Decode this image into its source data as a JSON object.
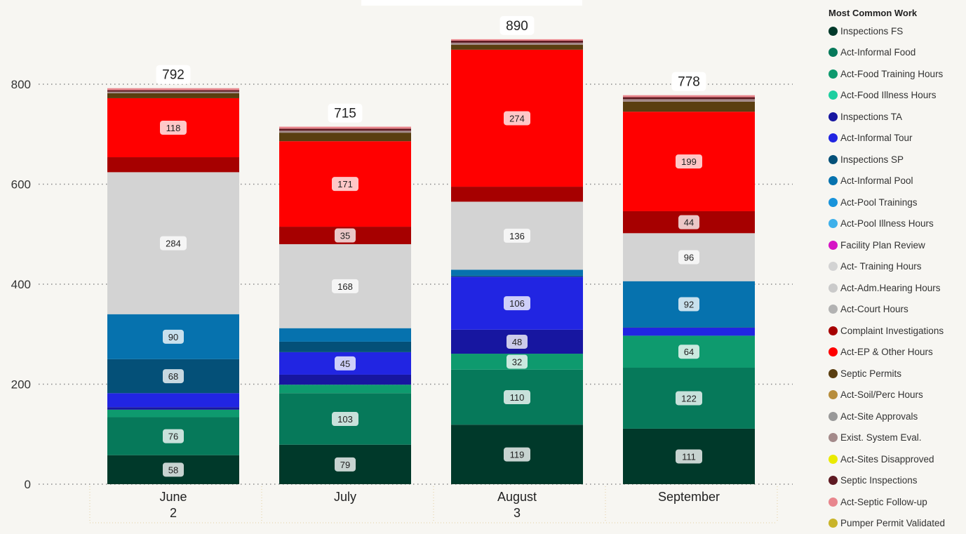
{
  "legend": {
    "title": "Most Common Work",
    "items": [
      {
        "name": "Inspections FS",
        "color": "#00392a"
      },
      {
        "name": "Act-Informal Food",
        "color": "#06795a"
      },
      {
        "name": "Act-Food Training Hours",
        "color": "#0e9a6e"
      },
      {
        "name": "Act-Food Illness Hours",
        "color": "#1ecfa0"
      },
      {
        "name": "Inspections TA",
        "color": "#1716a0"
      },
      {
        "name": "Act-Informal Tour",
        "color": "#2125e2"
      },
      {
        "name": "Inspections SP",
        "color": "#045078"
      },
      {
        "name": "Act-Informal Pool",
        "color": "#0672ae"
      },
      {
        "name": "Act-Pool Trainings",
        "color": "#1893da"
      },
      {
        "name": "Act-Pool Illness Hours",
        "color": "#3eb0ea"
      },
      {
        "name": "Facility Plan Review",
        "color": "#d614c5"
      },
      {
        "name": "Act- Training Hours",
        "color": "#d3d3d3"
      },
      {
        "name": "Act-Adm.Hearing Hours",
        "color": "#cacaca"
      },
      {
        "name": "Act-Court Hours",
        "color": "#b2b2b2"
      },
      {
        "name": "Complaint Investigations",
        "color": "#a60000"
      },
      {
        "name": "Act-EP & Other Hours",
        "color": "#ff0000"
      },
      {
        "name": "Septic Permits",
        "color": "#5a3e10"
      },
      {
        "name": "Act-Soil/Perc Hours",
        "color": "#b78d3c"
      },
      {
        "name": "Act-Site Approvals",
        "color": "#999999"
      },
      {
        "name": "Exist. System Eval.",
        "color": "#a48a8a"
      },
      {
        "name": "Act-Sites Disapproved",
        "color": "#eaea00"
      },
      {
        "name": "Septic Inspections",
        "color": "#5e1a22"
      },
      {
        "name": "Act-Septic Follow-up",
        "color": "#e8868d"
      },
      {
        "name": "Pumper Permit Validated",
        "color": "#c9b42a"
      }
    ]
  },
  "chart_data": {
    "type": "bar",
    "stacked": true,
    "title": "",
    "xlabel": "",
    "ylabel": "",
    "ylim": [
      0,
      890
    ],
    "y_ticks": [
      0,
      200,
      400,
      600,
      800
    ],
    "grid": true,
    "legend_position": "right",
    "categories": [
      "June",
      "July",
      "August",
      "September"
    ],
    "category_sublabels": [
      "2",
      "",
      "3",
      ""
    ],
    "totals": [
      792,
      715,
      890,
      778
    ],
    "series": [
      {
        "name": "Inspections FS",
        "values": [
          58,
          79,
          119,
          111
        ],
        "labels": [
          true,
          true,
          true,
          true
        ]
      },
      {
        "name": "Act-Informal Food",
        "values": [
          76,
          103,
          110,
          122
        ],
        "labels": [
          true,
          true,
          true,
          true
        ]
      },
      {
        "name": "Act-Food Training Hours",
        "values": [
          15,
          17,
          32,
          64
        ],
        "labels": [
          false,
          false,
          true,
          true
        ]
      },
      {
        "name": "Act-Food Illness Hours",
        "values": [
          0,
          0,
          0,
          0
        ],
        "labels": [
          false,
          false,
          false,
          false
        ]
      },
      {
        "name": "Inspections TA",
        "values": [
          5,
          20,
          48,
          0
        ],
        "labels": [
          false,
          false,
          true,
          false
        ]
      },
      {
        "name": "Act-Informal Tour",
        "values": [
          28,
          45,
          106,
          16
        ],
        "labels": [
          false,
          true,
          true,
          false
        ]
      },
      {
        "name": "Inspections SP",
        "values": [
          68,
          21,
          2,
          1
        ],
        "labels": [
          true,
          false,
          false,
          false
        ]
      },
      {
        "name": "Act-Informal Pool",
        "values": [
          90,
          27,
          12,
          92
        ],
        "labels": [
          true,
          false,
          false,
          true
        ]
      },
      {
        "name": "Act-Pool Trainings",
        "values": [
          0,
          0,
          0,
          0
        ],
        "labels": [
          false,
          false,
          false,
          false
        ]
      },
      {
        "name": "Act-Pool Illness Hours",
        "values": [
          0,
          0,
          0,
          0
        ],
        "labels": [
          false,
          false,
          false,
          false
        ]
      },
      {
        "name": "Facility Plan Review",
        "values": [
          0,
          0,
          0,
          0
        ],
        "labels": [
          false,
          false,
          false,
          false
        ]
      },
      {
        "name": "Act- Training Hours",
        "values": [
          284,
          168,
          136,
          96
        ],
        "labels": [
          true,
          true,
          true,
          true
        ]
      },
      {
        "name": "Act-Adm.Hearing Hours",
        "values": [
          0,
          0,
          0,
          0
        ],
        "labels": [
          false,
          false,
          false,
          false
        ]
      },
      {
        "name": "Act-Court Hours",
        "values": [
          0,
          0,
          0,
          0
        ],
        "labels": [
          false,
          false,
          false,
          false
        ]
      },
      {
        "name": "Complaint Investigations",
        "values": [
          30,
          35,
          30,
          44
        ],
        "labels": [
          false,
          true,
          false,
          true
        ]
      },
      {
        "name": "Act-EP & Other Hours",
        "values": [
          118,
          171,
          274,
          199
        ],
        "labels": [
          true,
          true,
          true,
          true
        ]
      },
      {
        "name": "Septic Permits",
        "values": [
          10,
          17,
          10,
          20
        ],
        "labels": [
          false,
          false,
          false,
          false
        ]
      },
      {
        "name": "Act-Soil/Perc Hours",
        "values": [
          0,
          0,
          0,
          0
        ],
        "labels": [
          false,
          false,
          false,
          false
        ]
      },
      {
        "name": "Act-Site Approvals",
        "values": [
          0,
          0,
          0,
          0
        ],
        "labels": [
          false,
          false,
          false,
          false
        ]
      },
      {
        "name": "Exist. System Eval.",
        "values": [
          3,
          4,
          4,
          5
        ],
        "labels": [
          false,
          false,
          false,
          false
        ]
      },
      {
        "name": "Act-Sites Disapproved",
        "values": [
          0,
          0,
          0,
          0
        ],
        "labels": [
          false,
          false,
          false,
          false
        ]
      },
      {
        "name": "Septic Inspections",
        "values": [
          3,
          4,
          4,
          4
        ],
        "labels": [
          false,
          false,
          false,
          false
        ]
      },
      {
        "name": "Act-Septic Follow-up",
        "values": [
          4,
          4,
          3,
          4
        ],
        "labels": [
          false,
          false,
          false,
          false
        ]
      },
      {
        "name": "Pumper Permit Validated",
        "values": [
          0,
          0,
          0,
          0
        ],
        "labels": [
          false,
          false,
          false,
          false
        ]
      }
    ]
  }
}
